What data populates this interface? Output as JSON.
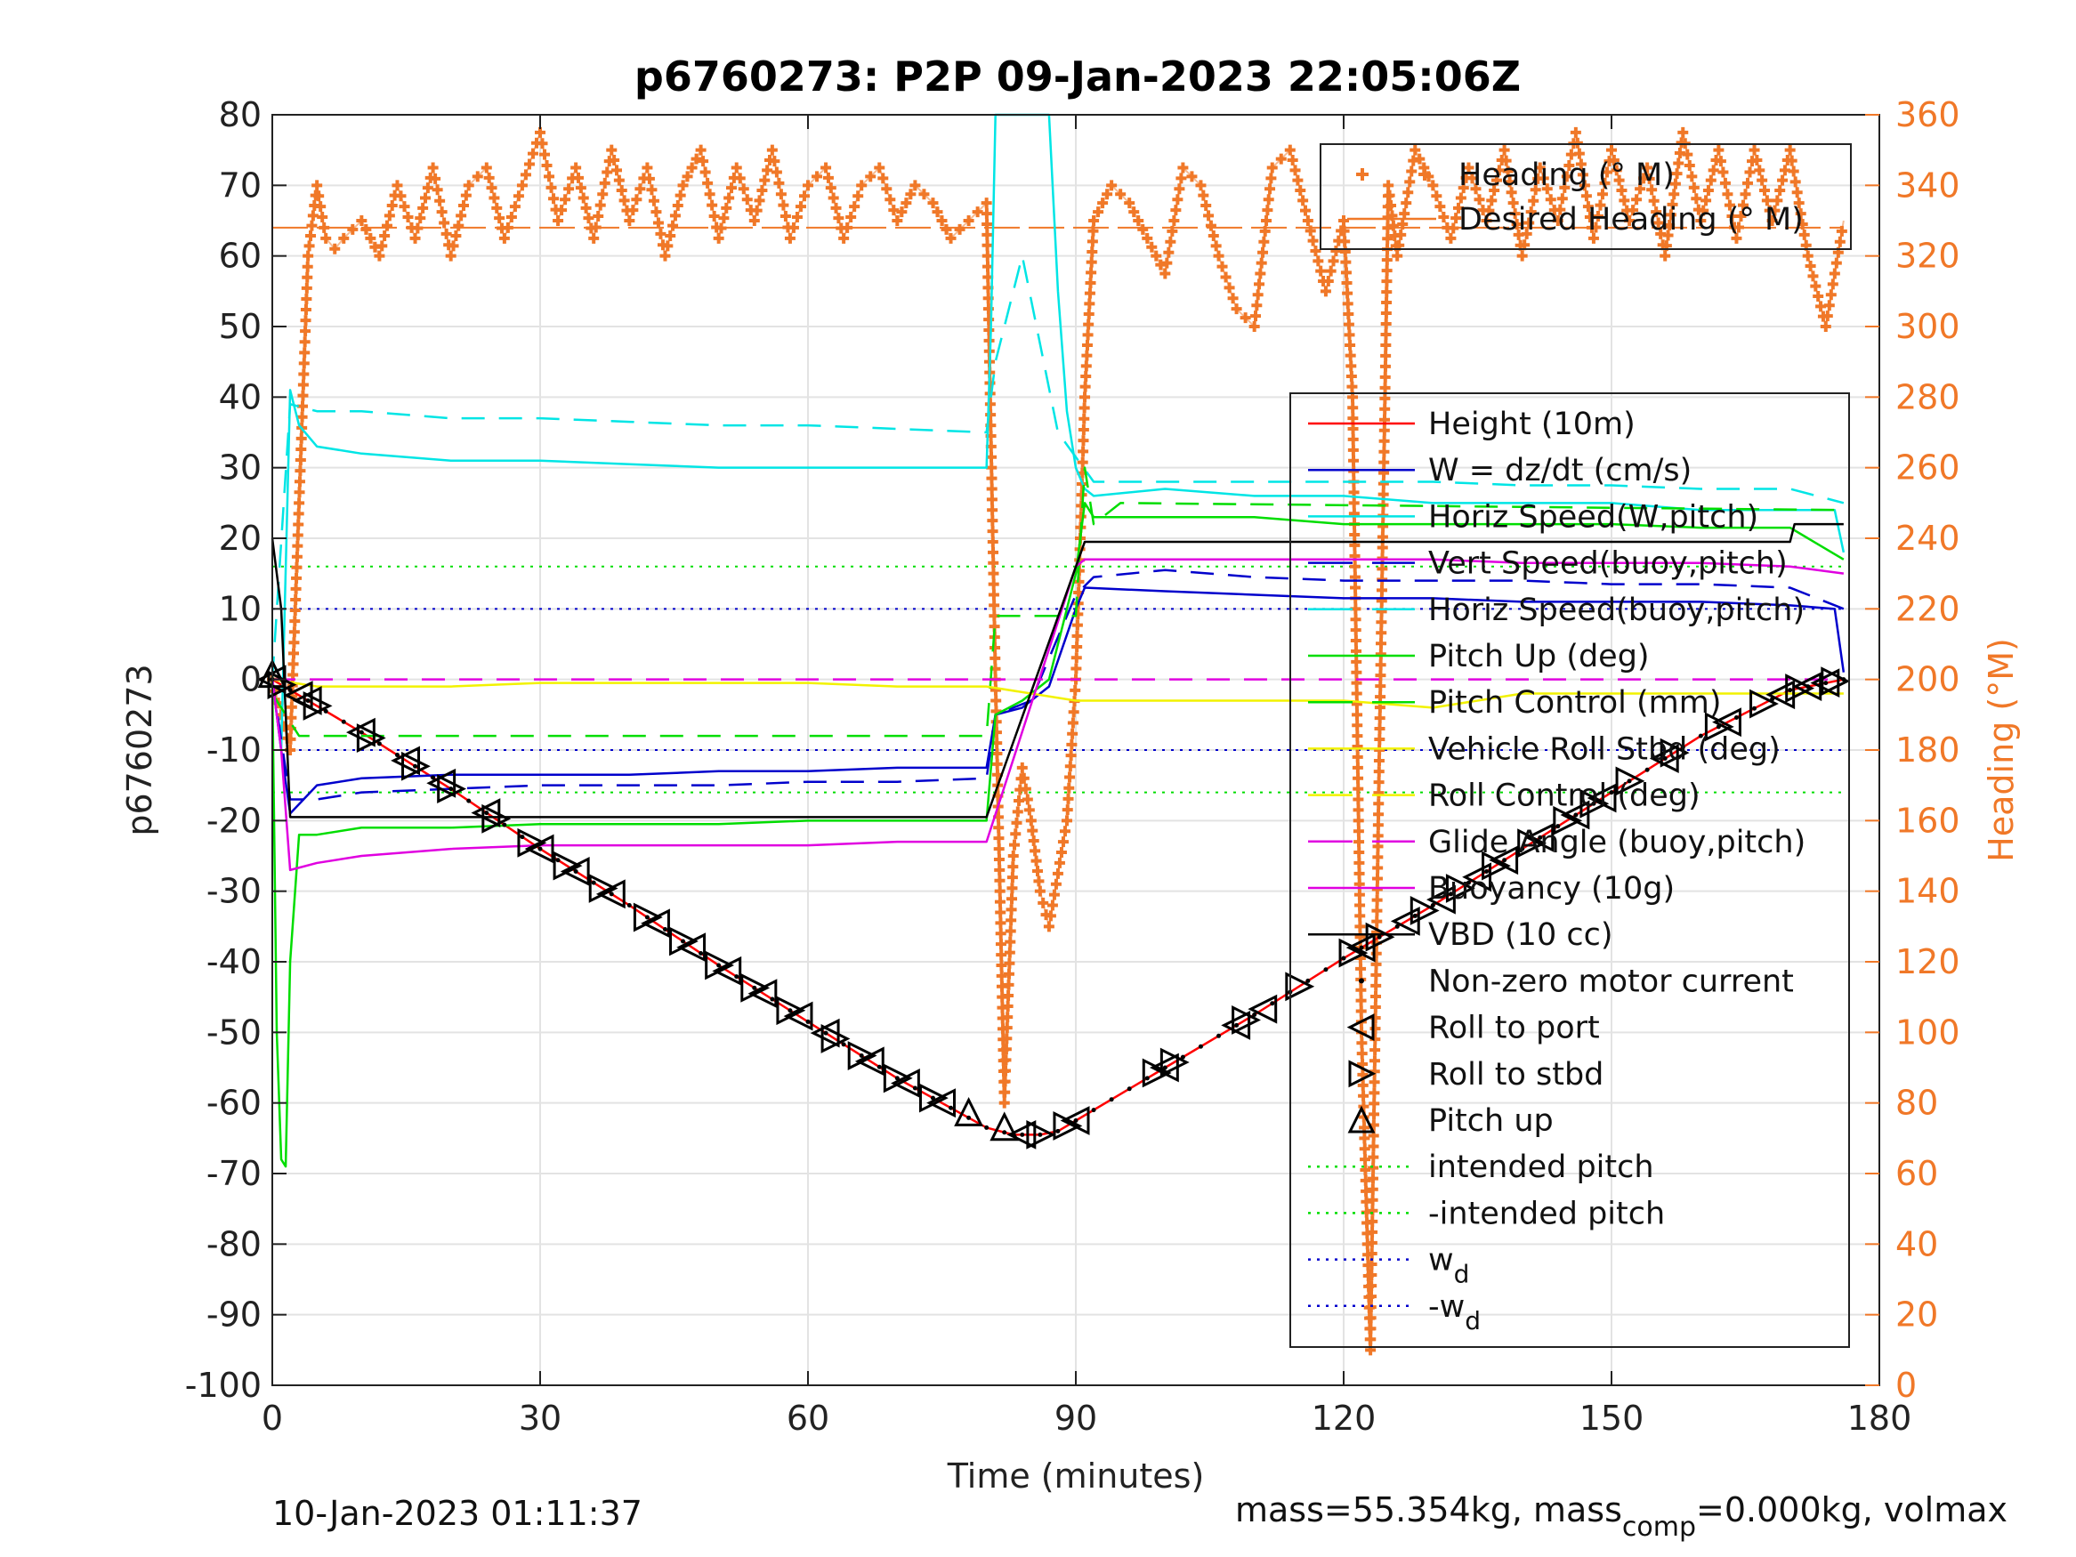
{
  "chart_data": {
    "type": "line",
    "title": "p6760273: P2P 09-Jan-2023 22:05:06Z",
    "xlabel": "Time (minutes)",
    "ylabel": "p6760273",
    "y2label": "Heading (°M)",
    "xlim": [
      0,
      180
    ],
    "ylim": [
      -100,
      80
    ],
    "y2lim": [
      0,
      360
    ],
    "xticks": [
      "0",
      "30",
      "60",
      "90",
      "120",
      "150",
      "180"
    ],
    "yticks": [
      "80",
      "70",
      "60",
      "50",
      "40",
      "30",
      "20",
      "10",
      "0",
      "-10",
      "-20",
      "-30",
      "-40",
      "-50",
      "-60",
      "-70",
      "-80",
      "-90",
      "-100"
    ],
    "y2ticks": [
      "360",
      "340",
      "320",
      "300",
      "280",
      "260",
      "240",
      "220",
      "200",
      "180",
      "160",
      "140",
      "120",
      "100",
      "80",
      "60",
      "40",
      "20",
      "0"
    ],
    "grid": true,
    "legend_heading": {
      "placement": "top-right",
      "entries": [
        {
          "label": "Heading (° M)",
          "color": "#f07828",
          "style": "plus"
        },
        {
          "label": "Desired Heading (° M)",
          "color": "#f07828",
          "style": "solid"
        }
      ]
    },
    "legend_main": {
      "placement": "right",
      "entries": [
        {
          "label": "Height (10m)",
          "color": "#ff0000",
          "style": "solid"
        },
        {
          "label": "W = dz/dt (cm/s)",
          "color": "#0000cc",
          "style": "solid"
        },
        {
          "label": "Horiz Speed(W,pitch)",
          "color": "#00e5e5",
          "style": "solid"
        },
        {
          "label": "Vert Speed(buoy,pitch)",
          "color": "#0000cc",
          "style": "dashed"
        },
        {
          "label": "Horiz Speed(buoy,pitch)",
          "color": "#00e5e5",
          "style": "dashed"
        },
        {
          "label": "Pitch Up (deg)",
          "color": "#00dd00",
          "style": "solid"
        },
        {
          "label": "Pitch Control (mm)",
          "color": "#00dd00",
          "style": "dashed"
        },
        {
          "label": "Vehicle Roll Stbd (deg)",
          "color": "#f2f200",
          "style": "solid"
        },
        {
          "label": "Roll Control (deg)",
          "color": "#f2f200",
          "style": "dashed"
        },
        {
          "label": "Glide Angle (buoy,pitch)",
          "color": "#e000e0",
          "style": "dashed"
        },
        {
          "label": "Buoyancy (10g)",
          "color": "#e000e0",
          "style": "solid"
        },
        {
          "label": "VBD (10 cc)",
          "color": "#000000",
          "style": "solid"
        },
        {
          "label": "Non-zero motor current",
          "color": "#000000",
          "style": "dot"
        },
        {
          "label": "Roll to port",
          "color": "#000000",
          "style": "tri-left"
        },
        {
          "label": "Roll to stbd",
          "color": "#000000",
          "style": "tri-right"
        },
        {
          "label": "Pitch up",
          "color": "#000000",
          "style": "tri-up"
        },
        {
          "label": "intended pitch",
          "color": "#00dd00",
          "style": "dotted"
        },
        {
          "label": "-intended pitch",
          "color": "#00dd00",
          "style": "dotted"
        },
        {
          "label": "w",
          "sub": "d",
          "color": "#0000cc",
          "style": "dotted"
        },
        {
          "label": "-w",
          "sub": "d",
          "color": "#0000cc",
          "style": "dotted"
        }
      ]
    },
    "series": [
      {
        "name": "Height (10m)",
        "color": "#ff0000",
        "x": [
          0,
          10,
          20,
          30,
          40,
          50,
          60,
          70,
          80,
          83,
          86,
          88,
          90,
          100,
          110,
          120,
          130,
          140,
          150,
          160,
          170,
          176
        ],
        "y": [
          0,
          -7.5,
          -15.5,
          -24,
          -32,
          -40.5,
          -48.5,
          -56.5,
          -63.5,
          -64.5,
          -64.5,
          -64,
          -62.5,
          -55,
          -47.5,
          -39.5,
          -32,
          -24,
          -16,
          -8,
          -1.5,
          0
        ]
      },
      {
        "name": "W = dz/dt (cm/s)",
        "color": "#0000cc",
        "x": [
          0,
          1,
          2,
          5,
          10,
          20,
          30,
          40,
          50,
          60,
          70,
          80,
          81,
          84,
          87,
          90,
          91,
          100,
          110,
          120,
          130,
          140,
          150,
          160,
          170,
          175,
          176
        ],
        "y": [
          0,
          -10,
          -19,
          -15,
          -14,
          -13.5,
          -13.5,
          -13.5,
          -13,
          -13,
          -12.5,
          -12.5,
          -5,
          -4,
          -1,
          10,
          13,
          12.5,
          12,
          11.5,
          11.5,
          11,
          11,
          11,
          10.5,
          10,
          1
        ]
      },
      {
        "name": "Horiz Speed(W,pitch)",
        "color": "#00e5e5",
        "x": [
          0,
          1,
          2,
          3,
          5,
          10,
          20,
          30,
          40,
          50,
          60,
          70,
          80,
          80.5,
          81,
          82,
          83,
          84,
          85,
          86,
          87,
          88,
          89,
          90,
          91,
          92,
          100,
          110,
          120,
          130,
          140,
          150,
          160,
          170,
          175,
          176
        ],
        "y": [
          0,
          -10,
          41,
          36,
          33,
          32,
          31,
          31,
          30.5,
          30,
          30,
          30,
          30,
          50,
          80,
          80,
          80,
          80,
          80,
          80,
          80,
          55,
          38,
          30,
          27,
          26,
          27,
          26,
          26,
          25,
          25,
          25,
          24,
          24,
          24,
          18
        ]
      },
      {
        "name": "Vert Speed(buoy,pitch)",
        "color": "#0000cc",
        "x": [
          0,
          2,
          5,
          10,
          20,
          30,
          40,
          50,
          60,
          70,
          80,
          81,
          85,
          90,
          92,
          100,
          110,
          120,
          130,
          140,
          150,
          160,
          170,
          176
        ],
        "y": [
          0,
          -17,
          -17,
          -16,
          -15.5,
          -15,
          -15,
          -15,
          -14.5,
          -14.5,
          -14,
          -5,
          -3,
          12,
          14.5,
          15.5,
          14.5,
          14,
          14,
          14,
          13.5,
          13.5,
          13,
          10
        ]
      },
      {
        "name": "Horiz Speed(buoy,pitch)",
        "color": "#00e5e5",
        "x": [
          0,
          2,
          5,
          10,
          20,
          30,
          40,
          50,
          60,
          70,
          80,
          81,
          84,
          88,
          92,
          100,
          110,
          120,
          130,
          140,
          150,
          160,
          170,
          176
        ],
        "y": [
          0,
          39,
          38,
          38,
          37,
          37,
          36.5,
          36,
          36,
          35.5,
          35,
          45,
          60,
          35,
          28,
          28,
          28,
          28,
          28,
          27.5,
          27.5,
          27,
          27,
          25
        ]
      },
      {
        "name": "Pitch Up (deg)",
        "color": "#00dd00",
        "x": [
          0,
          0.5,
          1,
          1.5,
          2,
          3,
          5,
          10,
          20,
          30,
          40,
          50,
          60,
          70,
          80,
          81,
          84,
          87,
          90,
          91,
          92,
          100,
          110,
          120,
          130,
          140,
          150,
          160,
          170,
          176
        ],
        "y": [
          0,
          -50,
          -68,
          -69,
          -40,
          -22,
          -22,
          -21,
          -21,
          -20.5,
          -20.5,
          -20.5,
          -20,
          -20,
          -20,
          -5,
          -3,
          0,
          15,
          25,
          23,
          23,
          23,
          22,
          22,
          22,
          22,
          21.5,
          21.5,
          17
        ]
      },
      {
        "name": "Pitch Control (mm)",
        "color": "#00dd00",
        "x": [
          0,
          3,
          80,
          81,
          86,
          90,
          91,
          92,
          95,
          176
        ],
        "y": [
          -2,
          -8,
          -8,
          9,
          9,
          9,
          30,
          22,
          25,
          24
        ]
      },
      {
        "name": "Vehicle Roll Stbd (deg)",
        "color": "#f2f200",
        "x": [
          0,
          5,
          10,
          20,
          30,
          40,
          50,
          60,
          70,
          80,
          90,
          100,
          110,
          120,
          130,
          140,
          150,
          160,
          170,
          176
        ],
        "y": [
          0,
          -1,
          -1,
          -1,
          -0.5,
          -0.5,
          -0.5,
          -0.5,
          -1,
          -1,
          -3,
          -3,
          -3,
          -3,
          -4,
          -2,
          -2,
          -2,
          -2,
          -2
        ]
      },
      {
        "name": "Glide Angle (buoy,pitch)",
        "color": "#e000e0",
        "x": [
          0,
          176
        ],
        "y": [
          0,
          0
        ]
      },
      {
        "name": "Buoyancy (10g)",
        "color": "#e000e0",
        "x": [
          0,
          1,
          2,
          5,
          10,
          20,
          30,
          40,
          50,
          60,
          70,
          80,
          90,
          91,
          100,
          110,
          120,
          130,
          140,
          150,
          160,
          170,
          176
        ],
        "y": [
          0,
          -10,
          -27,
          -26,
          -25,
          -24,
          -23.5,
          -23.5,
          -23.5,
          -23.5,
          -23,
          -23,
          16,
          17,
          17,
          17,
          17,
          17,
          16.5,
          16.5,
          16.5,
          16,
          15
        ]
      },
      {
        "name": "VBD (10 cc)",
        "color": "#000000",
        "x": [
          0,
          1,
          2,
          80,
          91,
          170,
          170.5,
          176
        ],
        "y": [
          20,
          10,
          -19.5,
          -19.5,
          19.5,
          19.5,
          22,
          22
        ]
      }
    ],
    "reference_lines": [
      {
        "name": "intended pitch",
        "y": 16,
        "color": "#00dd00"
      },
      {
        "name": "-intended pitch",
        "y": -16,
        "color": "#00dd00"
      },
      {
        "name": "w_d",
        "y": 10,
        "color": "#0000cc"
      },
      {
        "name": "-w_d",
        "y": -10,
        "color": "#0000cc"
      },
      {
        "name": "Desired Heading (° M)",
        "axis": "right",
        "y": 328,
        "color": "#f07828"
      }
    ],
    "markers": {
      "roll_to_port_x": [
        0,
        3,
        4,
        10,
        15,
        19,
        24,
        30,
        34,
        38,
        43,
        47,
        51,
        55,
        59,
        62,
        67,
        71,
        75,
        84,
        90,
        100,
        108,
        111,
        122,
        127,
        131,
        135,
        138,
        142,
        146,
        149,
        156,
        163,
        169,
        172,
        174
      ],
      "roll_to_stbd_x": [
        1,
        5,
        11,
        16,
        20,
        25,
        29,
        33,
        37,
        42,
        46,
        50,
        54,
        58,
        63,
        66,
        70,
        74,
        86,
        89,
        99,
        101,
        109,
        115,
        121,
        124,
        129,
        133,
        137,
        141,
        145,
        148,
        152,
        157,
        162,
        167,
        171,
        175
      ],
      "pitch_up_x": [
        0,
        78,
        82
      ]
    },
    "heading": {
      "color": "#f07828",
      "x": [
        0,
        1,
        2,
        3,
        4,
        5,
        6,
        7,
        8,
        10,
        12,
        14,
        16,
        18,
        20,
        22,
        24,
        26,
        28,
        30,
        32,
        34,
        36,
        38,
        40,
        42,
        44,
        46,
        48,
        50,
        52,
        54,
        56,
        58,
        60,
        62,
        64,
        66,
        68,
        70,
        72,
        74,
        76,
        78,
        80,
        81,
        82,
        83,
        84,
        85,
        86,
        87,
        88,
        89,
        90,
        91,
        92,
        94,
        96,
        98,
        100,
        102,
        104,
        106,
        108,
        110,
        112,
        114,
        116,
        118,
        120,
        121,
        122,
        123,
        124,
        125,
        126,
        128,
        130,
        132,
        134,
        136,
        138,
        140,
        142,
        144,
        146,
        148,
        150,
        152,
        154,
        156,
        158,
        160,
        162,
        164,
        166,
        168,
        170,
        172,
        174,
        176
      ],
      "y": [
        200,
        190,
        180,
        250,
        320,
        340,
        325,
        322,
        325,
        330,
        320,
        340,
        325,
        345,
        320,
        340,
        345,
        325,
        340,
        355,
        330,
        345,
        325,
        350,
        330,
        345,
        320,
        340,
        350,
        325,
        345,
        330,
        350,
        325,
        340,
        345,
        325,
        340,
        345,
        330,
        340,
        335,
        325,
        330,
        335,
        200,
        80,
        150,
        175,
        160,
        140,
        130,
        145,
        160,
        200,
        280,
        330,
        340,
        335,
        325,
        315,
        345,
        340,
        320,
        305,
        300,
        345,
        350,
        330,
        310,
        330,
        280,
        100,
        10,
        180,
        340,
        320,
        350,
        340,
        325,
        345,
        330,
        350,
        320,
        345,
        330,
        355,
        325,
        350,
        330,
        345,
        320,
        355,
        330,
        350,
        325,
        350,
        330,
        350,
        320,
        300,
        330
      ]
    },
    "footer": {
      "timestamp": "10-Jan-2023 01:11:37",
      "mass_text": "mass=55.354kg, mass",
      "mass_sub": "comp",
      "mass_rest": "=0.000kg, volmax"
    }
  }
}
